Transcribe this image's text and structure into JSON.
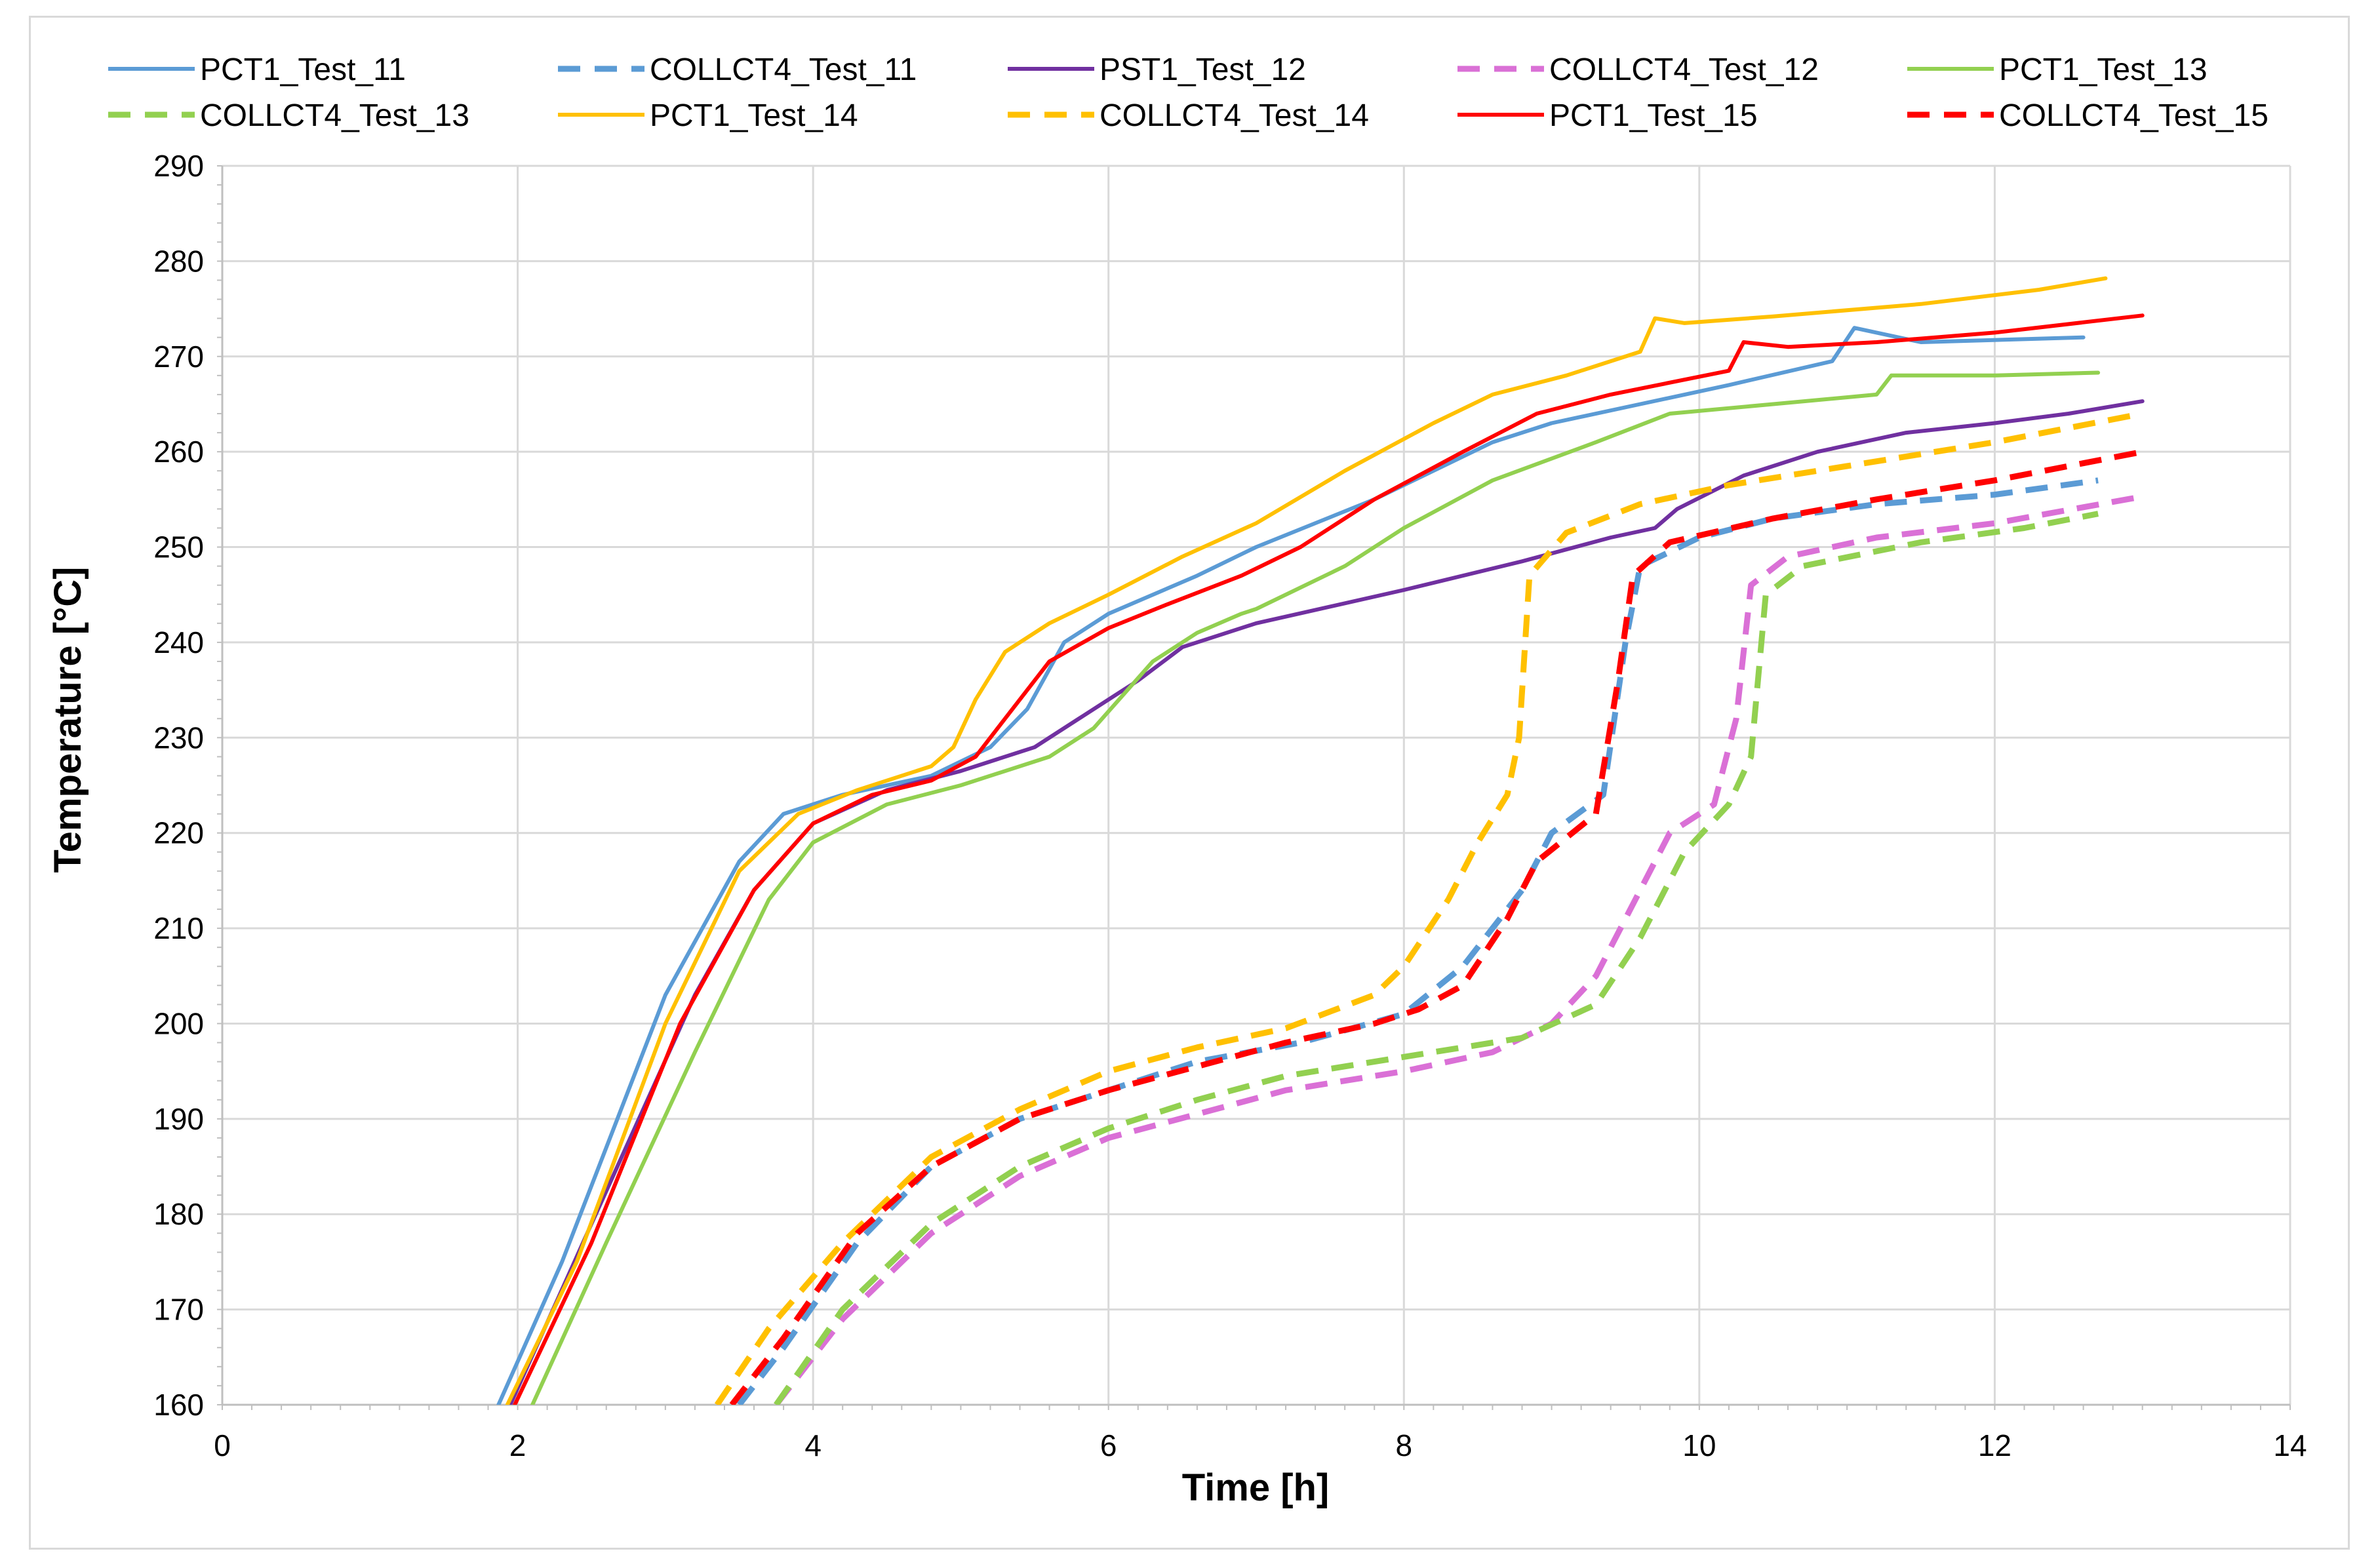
{
  "chart_data": {
    "type": "line",
    "xlabel": "Time [h]",
    "ylabel": "Temperature [°C]",
    "xlim": [
      0,
      14
    ],
    "ylim": [
      160,
      290
    ],
    "xticks": [
      "0",
      "2",
      "4",
      "6",
      "8",
      "10",
      "12",
      "14"
    ],
    "yticks": [
      "160",
      "170",
      "180",
      "190",
      "200",
      "210",
      "220",
      "230",
      "240",
      "250",
      "260",
      "270",
      "280",
      "290"
    ],
    "grid": "major",
    "legend_position": "top",
    "series": [
      {
        "name": "PCT1_Test_11",
        "color": "#5b9bd5",
        "dash": "solid",
        "points": [
          [
            1.87,
            160
          ],
          [
            2.3,
            175
          ],
          [
            3.0,
            203
          ],
          [
            3.5,
            217
          ],
          [
            3.8,
            222
          ],
          [
            4.2,
            224
          ],
          [
            4.8,
            226
          ],
          [
            5.2,
            229
          ],
          [
            5.45,
            233
          ],
          [
            5.7,
            240
          ],
          [
            6.0,
            243
          ],
          [
            6.6,
            247
          ],
          [
            7.0,
            250
          ],
          [
            7.8,
            255
          ],
          [
            8.6,
            261
          ],
          [
            9.0,
            263
          ],
          [
            9.6,
            265
          ],
          [
            10.2,
            267
          ],
          [
            10.9,
            269.5
          ],
          [
            11.05,
            273
          ],
          [
            11.5,
            271.5
          ],
          [
            12.6,
            272
          ]
        ]
      },
      {
        "name": "COLLCT4_Test_11",
        "color": "#5b9bd5",
        "dash": "dashed",
        "points": [
          [
            3.5,
            160
          ],
          [
            3.8,
            166
          ],
          [
            4.3,
            177
          ],
          [
            4.8,
            185
          ],
          [
            5.4,
            190
          ],
          [
            6.0,
            193
          ],
          [
            6.6,
            196
          ],
          [
            7.3,
            198
          ],
          [
            8.0,
            201
          ],
          [
            8.4,
            206
          ],
          [
            8.8,
            214
          ],
          [
            9.0,
            220
          ],
          [
            9.35,
            224
          ],
          [
            9.5,
            240
          ],
          [
            9.6,
            248
          ],
          [
            10.0,
            251
          ],
          [
            10.5,
            253
          ],
          [
            11.2,
            254.5
          ],
          [
            12.0,
            255.5
          ],
          [
            12.7,
            257
          ]
        ]
      },
      {
        "name": "PST1_Test_12",
        "color": "#7030a0",
        "dash": "solid",
        "points": [
          [
            1.95,
            160
          ],
          [
            2.5,
            179
          ],
          [
            3.2,
            203
          ],
          [
            3.6,
            214
          ],
          [
            4.0,
            221
          ],
          [
            4.5,
            224.5
          ],
          [
            5.0,
            226.5
          ],
          [
            5.5,
            229
          ],
          [
            5.8,
            232
          ],
          [
            6.2,
            236
          ],
          [
            6.5,
            239.5
          ],
          [
            7.0,
            242
          ],
          [
            8.0,
            245.5
          ],
          [
            8.8,
            248.5
          ],
          [
            9.4,
            251
          ],
          [
            9.7,
            252
          ],
          [
            9.85,
            254
          ],
          [
            10.3,
            257.5
          ],
          [
            10.8,
            260
          ],
          [
            11.4,
            262
          ],
          [
            12.0,
            263
          ],
          [
            12.5,
            264
          ],
          [
            13.0,
            265.3
          ]
        ]
      },
      {
        "name": "COLLCT4_Test_12",
        "color": "#da70d6",
        "dash": "dashed",
        "points": [
          [
            3.75,
            160
          ],
          [
            4.2,
            169
          ],
          [
            4.8,
            178
          ],
          [
            5.4,
            184
          ],
          [
            6.0,
            188
          ],
          [
            6.6,
            190.5
          ],
          [
            7.2,
            193
          ],
          [
            8.0,
            195
          ],
          [
            8.6,
            197
          ],
          [
            9.0,
            200
          ],
          [
            9.3,
            205
          ],
          [
            9.6,
            214
          ],
          [
            9.8,
            220
          ],
          [
            10.1,
            223
          ],
          [
            10.25,
            232
          ],
          [
            10.35,
            246
          ],
          [
            10.6,
            249
          ],
          [
            11.2,
            251
          ],
          [
            12.0,
            252.5
          ],
          [
            13.0,
            255.3
          ]
        ]
      },
      {
        "name": "PCT1_Test_13",
        "color": "#92d050",
        "dash": "solid",
        "points": [
          [
            2.1,
            160
          ],
          [
            2.6,
            177
          ],
          [
            3.2,
            197
          ],
          [
            3.7,
            213
          ],
          [
            4.0,
            219
          ],
          [
            4.5,
            223
          ],
          [
            5.0,
            225
          ],
          [
            5.6,
            228
          ],
          [
            5.9,
            231
          ],
          [
            6.3,
            238
          ],
          [
            6.6,
            241
          ],
          [
            6.9,
            243
          ],
          [
            7.0,
            243.5
          ],
          [
            7.6,
            248
          ],
          [
            8.0,
            252
          ],
          [
            8.6,
            257
          ],
          [
            9.3,
            261
          ],
          [
            9.8,
            264
          ],
          [
            10.5,
            265
          ],
          [
            11.2,
            266
          ],
          [
            11.3,
            268
          ],
          [
            12.0,
            268
          ],
          [
            12.7,
            268.3
          ]
        ]
      },
      {
        "name": "COLLCT4_Test_13",
        "color": "#92d050",
        "dash": "dashed",
        "points": [
          [
            3.75,
            160
          ],
          [
            4.2,
            170
          ],
          [
            4.8,
            179
          ],
          [
            5.4,
            185
          ],
          [
            6.0,
            189
          ],
          [
            6.6,
            192
          ],
          [
            7.2,
            194.5
          ],
          [
            8.0,
            196.5
          ],
          [
            8.8,
            198.5
          ],
          [
            9.3,
            202
          ],
          [
            9.6,
            209
          ],
          [
            9.9,
            218
          ],
          [
            10.2,
            223
          ],
          [
            10.35,
            228
          ],
          [
            10.45,
            245
          ],
          [
            10.7,
            248
          ],
          [
            11.5,
            250.5
          ],
          [
            12.2,
            252
          ],
          [
            12.7,
            253.5
          ]
        ]
      },
      {
        "name": "PCT1_Test_14",
        "color": "#ffc000",
        "dash": "solid",
        "points": [
          [
            1.93,
            160
          ],
          [
            2.4,
            175
          ],
          [
            3.0,
            200
          ],
          [
            3.5,
            216
          ],
          [
            3.9,
            222
          ],
          [
            4.3,
            224.5
          ],
          [
            4.8,
            227
          ],
          [
            4.95,
            229
          ],
          [
            5.1,
            234
          ],
          [
            5.3,
            239
          ],
          [
            5.6,
            242
          ],
          [
            6.0,
            245
          ],
          [
            6.5,
            249
          ],
          [
            7.0,
            252.5
          ],
          [
            7.6,
            258
          ],
          [
            8.2,
            263
          ],
          [
            8.6,
            266
          ],
          [
            9.1,
            268
          ],
          [
            9.6,
            270.5
          ],
          [
            9.7,
            274
          ],
          [
            9.9,
            273.5
          ],
          [
            10.5,
            274.2
          ],
          [
            11.5,
            275.5
          ],
          [
            12.3,
            277
          ],
          [
            12.75,
            278.2
          ]
        ]
      },
      {
        "name": "COLLCT4_Test_14",
        "color": "#ffc000",
        "dash": "dashed",
        "points": [
          [
            3.35,
            160
          ],
          [
            3.7,
            168
          ],
          [
            4.2,
            177
          ],
          [
            4.8,
            186
          ],
          [
            5.4,
            191
          ],
          [
            6.0,
            195
          ],
          [
            6.6,
            197.5
          ],
          [
            7.2,
            199.5
          ],
          [
            7.8,
            203
          ],
          [
            8.0,
            206
          ],
          [
            8.3,
            213
          ],
          [
            8.5,
            219
          ],
          [
            8.7,
            224
          ],
          [
            8.78,
            230
          ],
          [
            8.85,
            247
          ],
          [
            9.1,
            251.5
          ],
          [
            9.6,
            254.5
          ],
          [
            10.2,
            256.5
          ],
          [
            11.0,
            258.5
          ],
          [
            12.0,
            261
          ],
          [
            13.0,
            264
          ]
        ]
      },
      {
        "name": "PCT1_Test_15",
        "color": "#ff0000",
        "dash": "solid",
        "points": [
          [
            1.98,
            160
          ],
          [
            2.5,
            177
          ],
          [
            3.1,
            200
          ],
          [
            3.6,
            214
          ],
          [
            4.0,
            221
          ],
          [
            4.4,
            224
          ],
          [
            4.8,
            225.5
          ],
          [
            5.1,
            228
          ],
          [
            5.3,
            232
          ],
          [
            5.6,
            238
          ],
          [
            6.0,
            241.5
          ],
          [
            6.4,
            244
          ],
          [
            6.9,
            247
          ],
          [
            7.3,
            250
          ],
          [
            7.8,
            255
          ],
          [
            8.4,
            260
          ],
          [
            8.9,
            264
          ],
          [
            9.4,
            266
          ],
          [
            10.2,
            268.5
          ],
          [
            10.3,
            271.5
          ],
          [
            10.6,
            271
          ],
          [
            11.2,
            271.5
          ],
          [
            12.0,
            272.5
          ],
          [
            13.0,
            274.3
          ]
        ]
      },
      {
        "name": "COLLCT4_Test_15",
        "color": "#ff0000",
        "dash": "dashed",
        "points": [
          [
            3.45,
            160
          ],
          [
            3.8,
            167
          ],
          [
            4.3,
            178
          ],
          [
            4.8,
            185
          ],
          [
            5.4,
            190
          ],
          [
            6.0,
            193
          ],
          [
            6.6,
            195.5
          ],
          [
            7.2,
            198
          ],
          [
            7.8,
            200
          ],
          [
            8.1,
            201.5
          ],
          [
            8.4,
            204
          ],
          [
            8.7,
            211
          ],
          [
            8.9,
            217
          ],
          [
            9.3,
            222
          ],
          [
            9.45,
            236
          ],
          [
            9.55,
            247
          ],
          [
            9.8,
            250.5
          ],
          [
            10.5,
            253
          ],
          [
            11.2,
            255
          ],
          [
            12.0,
            257
          ],
          [
            13.0,
            260
          ]
        ]
      }
    ]
  }
}
